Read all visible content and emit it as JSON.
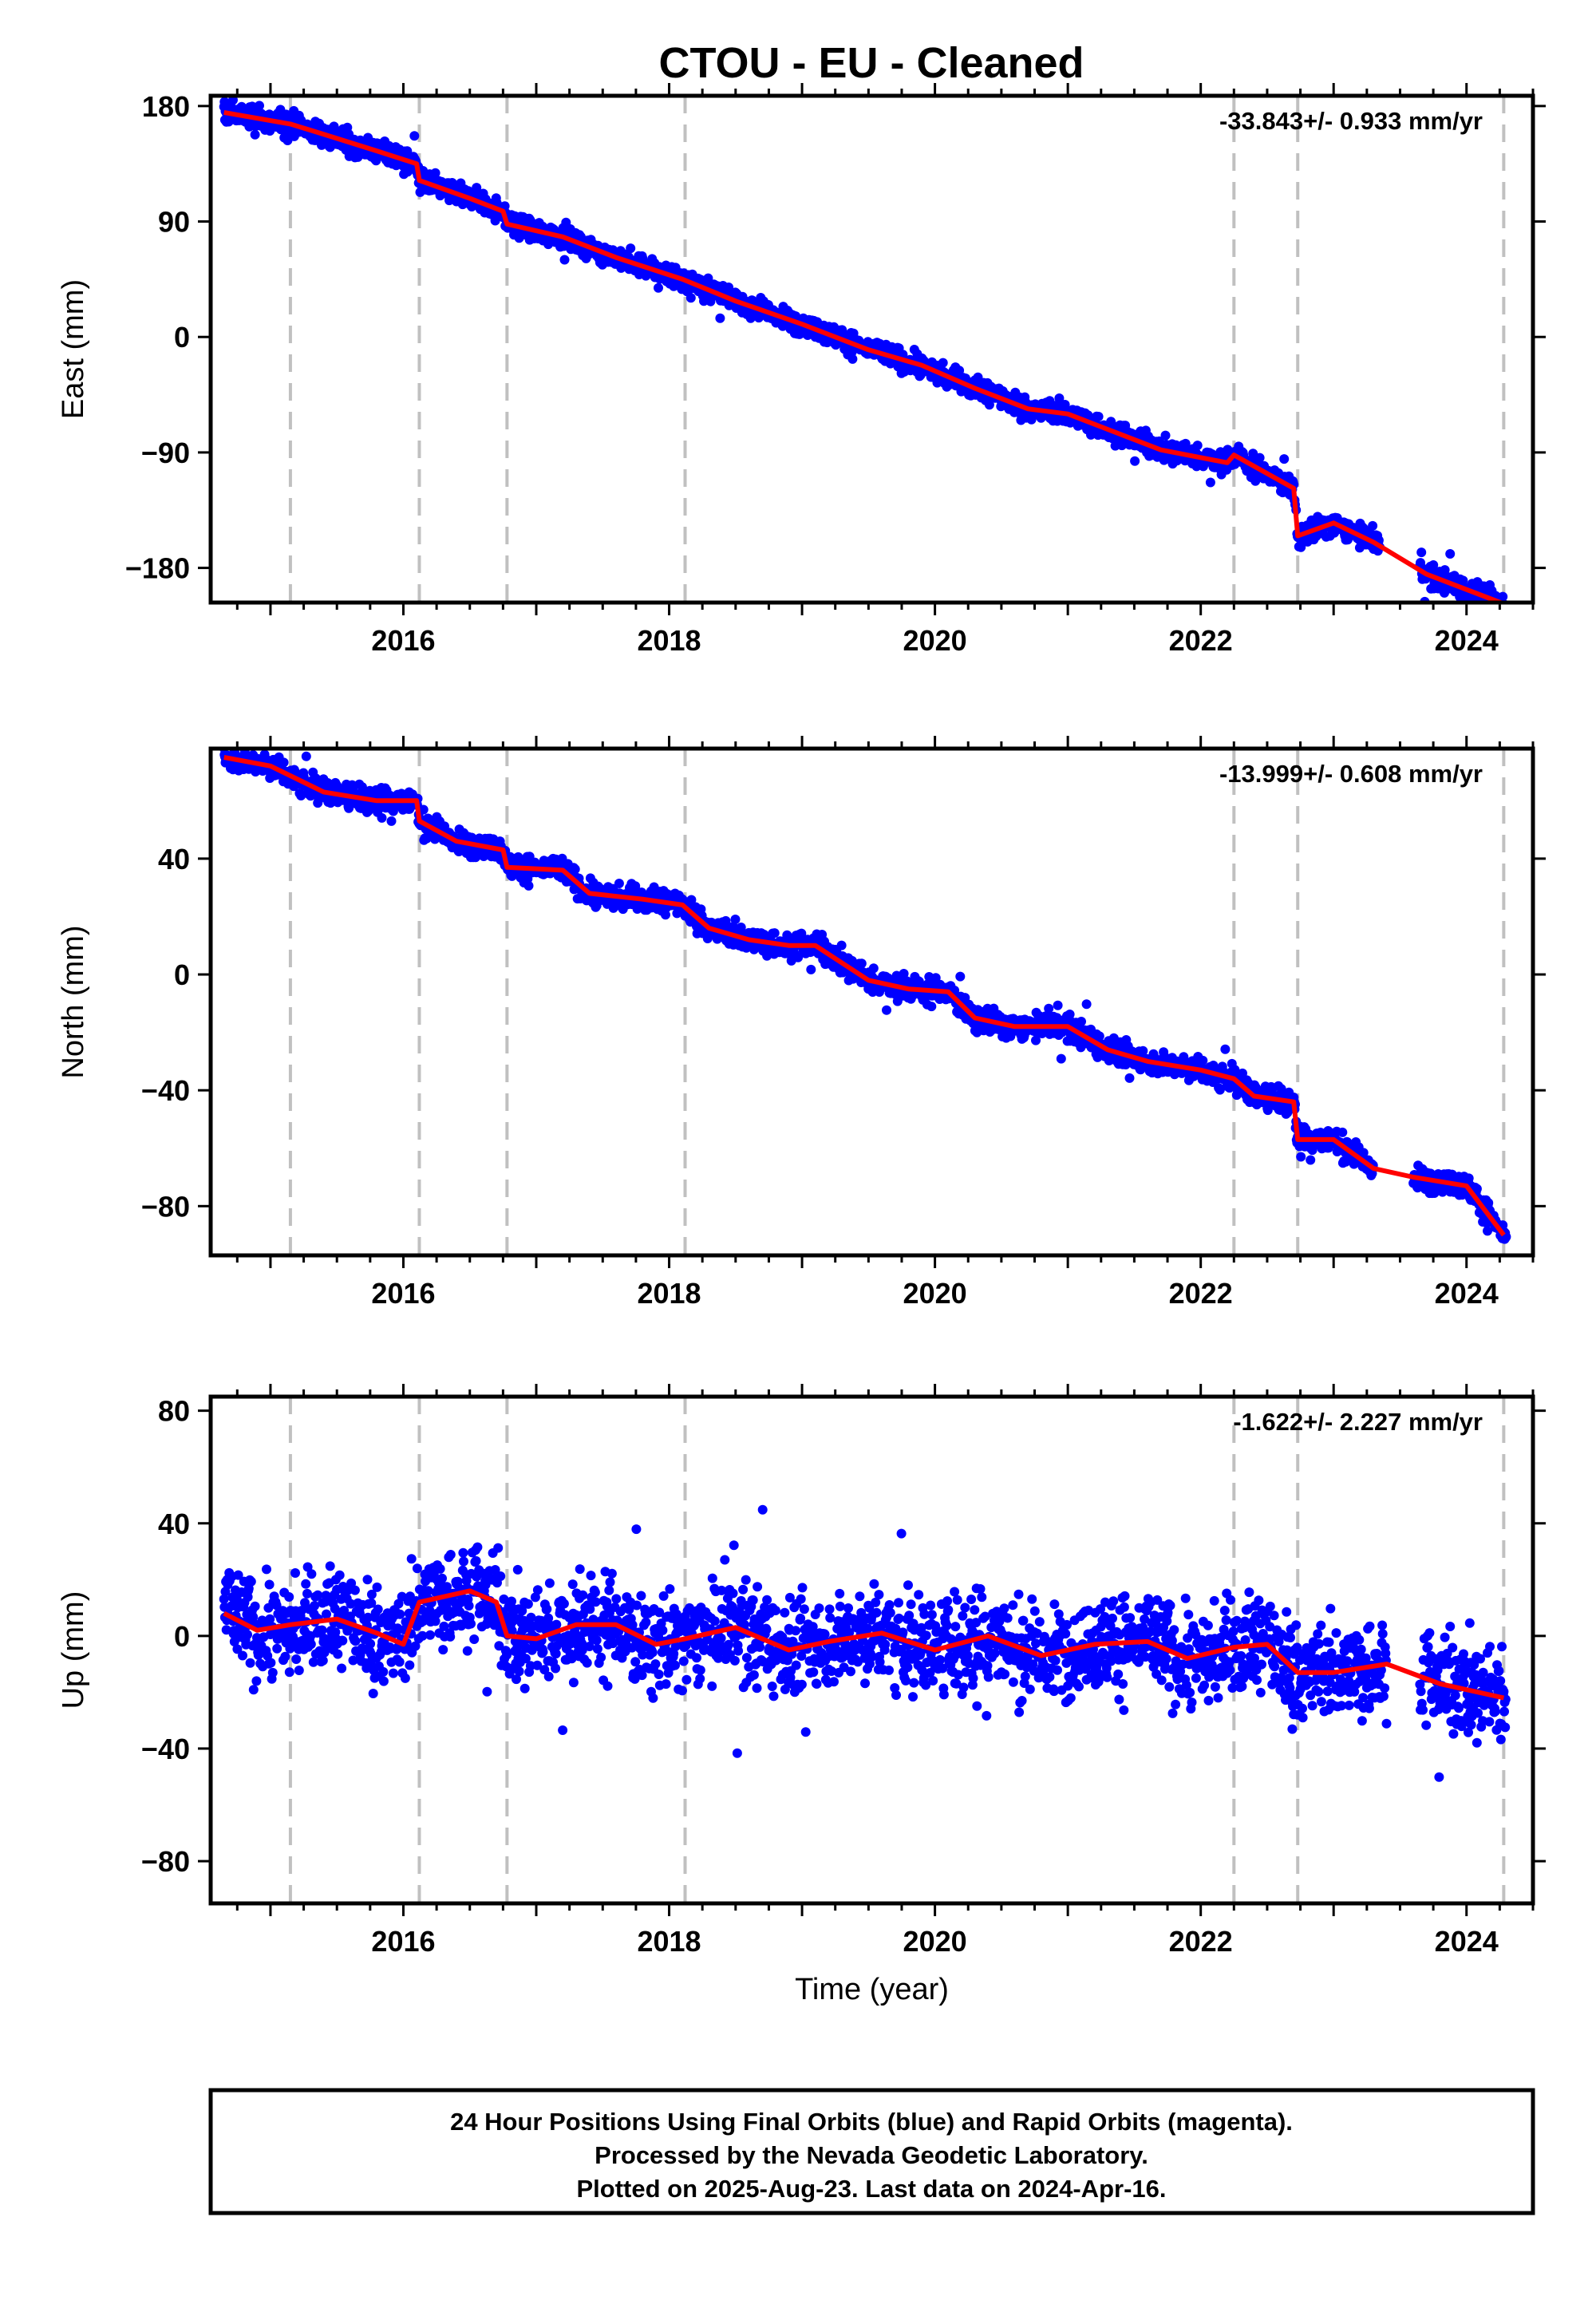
{
  "chart_data": {
    "type": "scatter",
    "title": "CTOU  - EU - Cleaned",
    "xlabel": "Time (year)",
    "xlim": [
      2014.55,
      2024.5
    ],
    "xticks": [
      2016,
      2018,
      2020,
      2022,
      2024
    ],
    "colors": {
      "points": "#0000ff",
      "model": "#ff0000",
      "breaks": "#c0c0c0"
    },
    "breaks": [
      2015.15,
      2016.12,
      2016.78,
      2018.12,
      2022.25,
      2022.73,
      2024.28
    ],
    "panels": [
      {
        "name": "east",
        "ylabel": "East (mm)",
        "ylim": [
          -207,
          188
        ],
        "yticks": [
          180,
          90,
          0,
          -90,
          -180
        ],
        "ytick_labels": [
          "180",
          "90",
          "0",
          "−90",
          "−180"
        ],
        "rate": "-33.843+/- 0.933 mm/yr",
        "noise": 6,
        "model": [
          [
            2014.65,
            175
          ],
          [
            2015.15,
            166
          ],
          [
            2015.4,
            158
          ],
          [
            2015.8,
            145
          ],
          [
            2016.1,
            135
          ],
          [
            2016.12,
            122
          ],
          [
            2016.5,
            108
          ],
          [
            2016.75,
            98
          ],
          [
            2016.78,
            88
          ],
          [
            2017.2,
            78
          ],
          [
            2017.6,
            62
          ],
          [
            2018.1,
            45
          ],
          [
            2018.5,
            28
          ],
          [
            2019.0,
            10
          ],
          [
            2019.5,
            -10
          ],
          [
            2019.9,
            -22
          ],
          [
            2020.3,
            -40
          ],
          [
            2020.7,
            -56
          ],
          [
            2021.0,
            -60
          ],
          [
            2021.3,
            -72
          ],
          [
            2021.7,
            -88
          ],
          [
            2022.2,
            -98
          ],
          [
            2022.25,
            -92
          ],
          [
            2022.7,
            -118
          ],
          [
            2022.73,
            -155
          ],
          [
            2023.0,
            -145
          ],
          [
            2023.3,
            -160
          ],
          [
            2023.7,
            -185
          ],
          [
            2024.28,
            -208
          ]
        ],
        "segments": [
          [
            2014.65,
            2023.35
          ],
          [
            2023.65,
            2024.3
          ]
        ]
      },
      {
        "name": "north",
        "ylabel": "North (mm)",
        "ylim": [
          -97,
          78
        ],
        "yticks": [
          40,
          0,
          -40,
          -80
        ],
        "ytick_labels": [
          "40",
          "0",
          "−40",
          "−80"
        ],
        "rate": "-13.999+/- 0.608 mm/yr",
        "noise": 3,
        "model": [
          [
            2014.65,
            75
          ],
          [
            2015.0,
            72
          ],
          [
            2015.4,
            63
          ],
          [
            2015.8,
            60
          ],
          [
            2016.1,
            60
          ],
          [
            2016.12,
            53
          ],
          [
            2016.4,
            46
          ],
          [
            2016.75,
            43
          ],
          [
            2016.78,
            37
          ],
          [
            2017.2,
            36
          ],
          [
            2017.4,
            28
          ],
          [
            2017.8,
            26
          ],
          [
            2018.1,
            24
          ],
          [
            2018.3,
            16
          ],
          [
            2018.6,
            12
          ],
          [
            2018.9,
            10
          ],
          [
            2019.1,
            10
          ],
          [
            2019.5,
            -2
          ],
          [
            2019.8,
            -5
          ],
          [
            2020.1,
            -6
          ],
          [
            2020.3,
            -15
          ],
          [
            2020.6,
            -18
          ],
          [
            2021.0,
            -18
          ],
          [
            2021.3,
            -26
          ],
          [
            2021.6,
            -30
          ],
          [
            2022.0,
            -33
          ],
          [
            2022.25,
            -36
          ],
          [
            2022.4,
            -42
          ],
          [
            2022.7,
            -44
          ],
          [
            2022.73,
            -57
          ],
          [
            2023.0,
            -57
          ],
          [
            2023.3,
            -67
          ],
          [
            2023.6,
            -70
          ],
          [
            2024.0,
            -73
          ],
          [
            2024.28,
            -90
          ]
        ],
        "segments": [
          [
            2014.65,
            2023.3
          ],
          [
            2023.6,
            2024.3
          ]
        ]
      },
      {
        "name": "up",
        "ylabel": "Up (mm)",
        "ylim": [
          -95,
          85
        ],
        "yticks": [
          80,
          40,
          0,
          -40,
          -80
        ],
        "ytick_labels": [
          "80",
          "40",
          "0",
          "−40",
          "−80"
        ],
        "rate": "-1.622+/- 2.227 mm/yr",
        "noise": 12,
        "model": [
          [
            2014.65,
            8
          ],
          [
            2014.9,
            2
          ],
          [
            2015.15,
            4
          ],
          [
            2015.5,
            6
          ],
          [
            2015.8,
            1
          ],
          [
            2016.0,
            -3
          ],
          [
            2016.12,
            12
          ],
          [
            2016.5,
            16
          ],
          [
            2016.7,
            12
          ],
          [
            2016.78,
            0
          ],
          [
            2017.0,
            -1
          ],
          [
            2017.3,
            4
          ],
          [
            2017.6,
            4
          ],
          [
            2017.9,
            -3
          ],
          [
            2018.12,
            -1
          ],
          [
            2018.5,
            3
          ],
          [
            2018.9,
            -5
          ],
          [
            2019.2,
            -2
          ],
          [
            2019.6,
            1
          ],
          [
            2020.0,
            -5
          ],
          [
            2020.4,
            0
          ],
          [
            2020.8,
            -7
          ],
          [
            2021.2,
            -3
          ],
          [
            2021.6,
            -2
          ],
          [
            2021.9,
            -8
          ],
          [
            2022.25,
            -4
          ],
          [
            2022.5,
            -3
          ],
          [
            2022.73,
            -13
          ],
          [
            2023.0,
            -13
          ],
          [
            2023.4,
            -10
          ],
          [
            2023.8,
            -17
          ],
          [
            2024.28,
            -22
          ]
        ],
        "segments": [
          [
            2014.65,
            2023.4
          ],
          [
            2023.65,
            2024.3
          ]
        ]
      }
    ]
  },
  "footer": {
    "line1": "24 Hour Positions Using Final Orbits (blue) and Rapid Orbits (magenta).",
    "line2": "Processed by the Nevada Geodetic Laboratory.",
    "line3": "Plotted on 2025-Aug-23. Last data on 2024-Apr-16."
  }
}
